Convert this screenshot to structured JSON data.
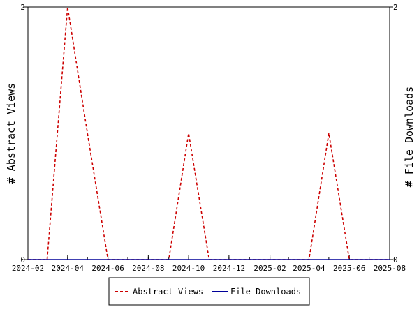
{
  "chart_data": {
    "type": "line",
    "x_type": "date",
    "xlim": [
      "2024-02-01",
      "2025-08-01"
    ],
    "x_ticks": [
      "2024-02",
      "2024-04",
      "2024-06",
      "2024-08",
      "2024-10",
      "2024-12",
      "2025-02",
      "2025-04",
      "2025-06",
      "2025-08"
    ],
    "ylabel_left": "# Abstract Views",
    "ylabel_right": "# File Downloads",
    "ylim_left": [
      0,
      2
    ],
    "ylim_right": [
      0,
      2
    ],
    "y_ticks_left": [
      "0",
      "2"
    ],
    "y_ticks_right": [
      "0",
      "2"
    ],
    "legend_position": "bottom",
    "series": [
      {
        "name": "Abstract Views",
        "axis": "left",
        "color": "#cc0000",
        "style": "dashed",
        "points": [
          [
            "2024-02-01",
            0
          ],
          [
            "2024-03-01",
            0
          ],
          [
            "2024-04-01",
            2
          ],
          [
            "2024-05-01",
            1
          ],
          [
            "2024-06-01",
            0
          ],
          [
            "2024-07-01",
            0
          ],
          [
            "2024-08-01",
            0
          ],
          [
            "2024-09-01",
            0
          ],
          [
            "2024-10-01",
            1
          ],
          [
            "2024-11-01",
            0
          ],
          [
            "2024-12-01",
            0
          ],
          [
            "2025-01-01",
            0
          ],
          [
            "2025-02-01",
            0
          ],
          [
            "2025-03-01",
            0
          ],
          [
            "2025-04-01",
            0
          ],
          [
            "2025-05-01",
            1
          ],
          [
            "2025-06-01",
            0
          ],
          [
            "2025-07-01",
            0
          ],
          [
            "2025-08-01",
            0
          ]
        ]
      },
      {
        "name": "File Downloads",
        "axis": "right",
        "color": "#000099",
        "style": "solid",
        "points": [
          [
            "2024-02-01",
            0
          ],
          [
            "2025-08-01",
            0
          ]
        ]
      }
    ]
  }
}
